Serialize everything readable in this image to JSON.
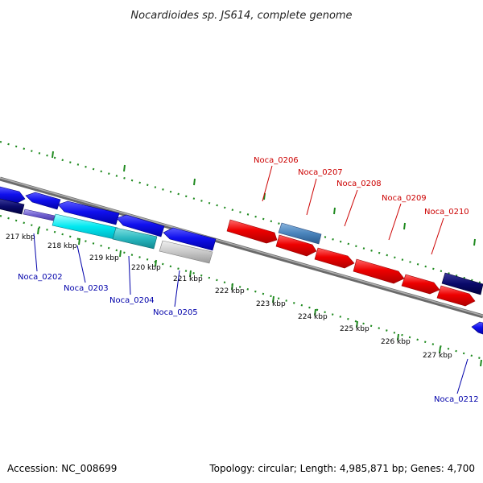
{
  "title": "Nocardioides sp. JS614, complete genome",
  "accession": "Accession: NC_008699",
  "summary": "Topology: circular; Length: 4,985,871 bp; Genes: 4,700",
  "colors": {
    "forward_label": "#cc0000",
    "reverse_label": "#0000aa",
    "tick": "#1f8a1f",
    "backbone": "#888888"
  },
  "kbp_marks": [
    "217 kbp",
    "218 kbp",
    "219 kbp",
    "220 kbp",
    "221 kbp",
    "222 kbp",
    "223 kbp",
    "224 kbp",
    "225 kbp",
    "226 kbp",
    "227 kbp"
  ],
  "forward_labels": [
    "Noca_0206",
    "Noca_0207",
    "Noca_0208",
    "Noca_0209",
    "Noca_0210"
  ],
  "reverse_labels": [
    "Noca_0202",
    "Noca_0203",
    "Noca_0204",
    "Noca_0205",
    "Noca_0212"
  ]
}
